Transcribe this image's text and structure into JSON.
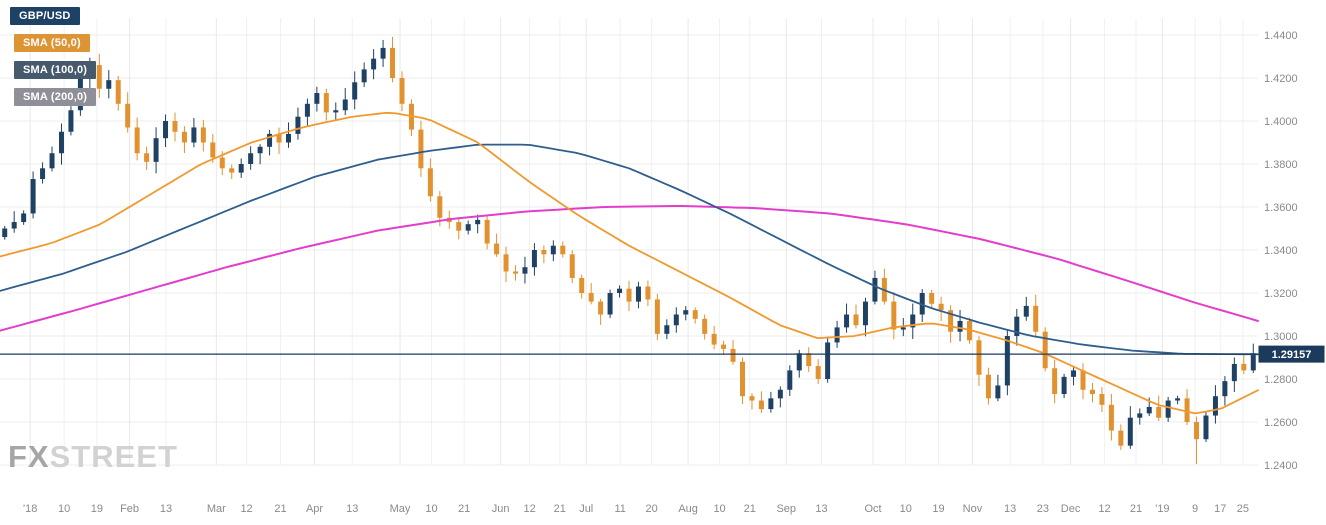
{
  "instrument": {
    "pair": "GBP/USD"
  },
  "legend": [
    {
      "label": "GBP/USD",
      "color": "#1d4266"
    },
    {
      "label": "SMA (50,0)",
      "color": "#dd9434"
    },
    {
      "label": "SMA (100,0)",
      "color": "#47596c"
    },
    {
      "label": "SMA (200,0)",
      "color": "#8f8f99"
    }
  ],
  "watermark": {
    "fx": "FX",
    "street": "STREET"
  },
  "price_axis": {
    "labels": [
      "1.4400",
      "1.4200",
      "1.4000",
      "1.3800",
      "1.3600",
      "1.3400",
      "1.3200",
      "1.3000",
      "1.2800",
      "1.2600",
      "1.2400"
    ],
    "current_price_label": "1.29157"
  },
  "chart_data": {
    "type": "candlestick",
    "title": "GBP/USD daily chart with SMA(50), SMA(100), SMA(200) overlays",
    "ylim": [
      1.24,
      1.44
    ],
    "y_ticks": [
      1.44,
      1.42,
      1.4,
      1.38,
      1.36,
      1.34,
      1.32,
      1.3,
      1.28,
      1.26,
      1.24
    ],
    "current_price": 1.29157,
    "x_ticks": [
      {
        "f": 0.024,
        "label": "'18",
        "month": true
      },
      {
        "f": 0.051,
        "label": "10",
        "month": false
      },
      {
        "f": 0.077,
        "label": "19",
        "month": false
      },
      {
        "f": 0.103,
        "label": "Feb",
        "month": true
      },
      {
        "f": 0.132,
        "label": "13",
        "month": false
      },
      {
        "f": 0.172,
        "label": "Mar",
        "month": true
      },
      {
        "f": 0.196,
        "label": "12",
        "month": false
      },
      {
        "f": 0.223,
        "label": "21",
        "month": false
      },
      {
        "f": 0.25,
        "label": "Apr",
        "month": true
      },
      {
        "f": 0.28,
        "label": "13",
        "month": false
      },
      {
        "f": 0.318,
        "label": "May",
        "month": true
      },
      {
        "f": 0.343,
        "label": "10",
        "month": false
      },
      {
        "f": 0.369,
        "label": "21",
        "month": false
      },
      {
        "f": 0.398,
        "label": "Jun",
        "month": true
      },
      {
        "f": 0.421,
        "label": "12",
        "month": false
      },
      {
        "f": 0.445,
        "label": "21",
        "month": false
      },
      {
        "f": 0.466,
        "label": "Jul",
        "month": true
      },
      {
        "f": 0.493,
        "label": "11",
        "month": false
      },
      {
        "f": 0.518,
        "label": "20",
        "month": false
      },
      {
        "f": 0.547,
        "label": "Aug",
        "month": true
      },
      {
        "f": 0.572,
        "label": "10",
        "month": false
      },
      {
        "f": 0.596,
        "label": "21",
        "month": false
      },
      {
        "f": 0.625,
        "label": "Sep",
        "month": true
      },
      {
        "f": 0.653,
        "label": "13",
        "month": false
      },
      {
        "f": 0.694,
        "label": "Oct",
        "month": true
      },
      {
        "f": 0.72,
        "label": "10",
        "month": false
      },
      {
        "f": 0.746,
        "label": "19",
        "month": false
      },
      {
        "f": 0.773,
        "label": "Nov",
        "month": true
      },
      {
        "f": 0.803,
        "label": "13",
        "month": false
      },
      {
        "f": 0.829,
        "label": "23",
        "month": false
      },
      {
        "f": 0.851,
        "label": "Dec",
        "month": true
      },
      {
        "f": 0.878,
        "label": "12",
        "month": false
      },
      {
        "f": 0.903,
        "label": "21",
        "month": false
      },
      {
        "f": 0.924,
        "label": "'19",
        "month": true
      },
      {
        "f": 0.95,
        "label": "9",
        "month": false
      },
      {
        "f": 0.97,
        "label": "17",
        "month": false
      },
      {
        "f": 0.988,
        "label": "25",
        "month": false
      }
    ],
    "candles": {
      "first_open": 1.346,
      "closes": [
        1.35,
        1.353,
        1.357,
        1.373,
        1.378,
        1.385,
        1.395,
        1.405,
        1.42,
        1.426,
        1.415,
        1.419,
        1.408,
        1.397,
        1.385,
        1.381,
        1.392,
        1.4,
        1.395,
        1.39,
        1.397,
        1.39,
        1.383,
        1.378,
        1.376,
        1.38,
        1.385,
        1.388,
        1.394,
        1.39,
        1.394,
        1.402,
        1.408,
        1.413,
        1.404,
        1.405,
        1.41,
        1.418,
        1.424,
        1.429,
        1.434,
        1.42,
        1.408,
        1.396,
        1.378,
        1.365,
        1.355,
        1.353,
        1.349,
        1.352,
        1.354,
        1.343,
        1.338,
        1.33,
        1.329,
        1.332,
        1.34,
        1.338,
        1.342,
        1.338,
        1.327,
        1.32,
        1.316,
        1.31,
        1.32,
        1.322,
        1.316,
        1.323,
        1.317,
        1.301,
        1.305,
        1.31,
        1.312,
        1.308,
        1.301,
        1.296,
        1.294,
        1.288,
        1.272,
        1.27,
        1.266,
        1.271,
        1.275,
        1.284,
        1.292,
        1.286,
        1.28,
        1.297,
        1.304,
        1.31,
        1.305,
        1.316,
        1.327,
        1.316,
        1.303,
        1.304,
        1.31,
        1.32,
        1.315,
        1.312,
        1.302,
        1.307,
        1.298,
        1.282,
        1.271,
        1.277,
        1.3,
        1.309,
        1.314,
        1.302,
        1.285,
        1.273,
        1.281,
        1.284,
        1.275,
        1.273,
        1.268,
        1.256,
        1.249,
        1.262,
        1.264,
        1.267,
        1.262,
        1.27,
        1.271,
        1.26,
        1.252,
        1.263,
        1.272,
        1.279,
        1.287,
        1.284,
        1.292
      ],
      "wick_overrides": {
        "40": {
          "high": 1.4377
        },
        "126": {
          "low": 1.2405
        }
      }
    },
    "sma_series": [
      {
        "name": "SMA (50,0)",
        "color": "#f0992e",
        "width": 1.8,
        "points": [
          [
            0,
            1.337
          ],
          [
            0.04,
            1.343
          ],
          [
            0.08,
            1.352
          ],
          [
            0.12,
            1.366
          ],
          [
            0.16,
            1.38
          ],
          [
            0.2,
            1.39
          ],
          [
            0.24,
            1.397
          ],
          [
            0.28,
            1.402
          ],
          [
            0.31,
            1.404
          ],
          [
            0.34,
            1.401
          ],
          [
            0.38,
            1.39
          ],
          [
            0.42,
            1.372
          ],
          [
            0.46,
            1.356
          ],
          [
            0.5,
            1.342
          ],
          [
            0.54,
            1.33
          ],
          [
            0.58,
            1.318
          ],
          [
            0.62,
            1.305
          ],
          [
            0.65,
            1.299
          ],
          [
            0.68,
            1.3
          ],
          [
            0.71,
            1.304
          ],
          [
            0.74,
            1.306
          ],
          [
            0.77,
            1.303
          ],
          [
            0.8,
            1.298
          ],
          [
            0.83,
            1.292
          ],
          [
            0.86,
            1.284
          ],
          [
            0.89,
            1.276
          ],
          [
            0.92,
            1.268
          ],
          [
            0.95,
            1.264
          ],
          [
            0.97,
            1.266
          ],
          [
            1,
            1.2748
          ]
        ]
      },
      {
        "name": "SMA (100,0)",
        "color": "#2e5e8e",
        "width": 1.8,
        "points": [
          [
            0,
            1.321
          ],
          [
            0.05,
            1.329
          ],
          [
            0.1,
            1.339
          ],
          [
            0.15,
            1.351
          ],
          [
            0.2,
            1.363
          ],
          [
            0.25,
            1.374
          ],
          [
            0.3,
            1.382
          ],
          [
            0.34,
            1.386
          ],
          [
            0.38,
            1.389
          ],
          [
            0.42,
            1.389
          ],
          [
            0.46,
            1.385
          ],
          [
            0.5,
            1.378
          ],
          [
            0.54,
            1.368
          ],
          [
            0.58,
            1.357
          ],
          [
            0.62,
            1.345
          ],
          [
            0.66,
            1.333
          ],
          [
            0.7,
            1.322
          ],
          [
            0.74,
            1.313
          ],
          [
            0.78,
            1.306
          ],
          [
            0.82,
            1.3
          ],
          [
            0.86,
            1.296
          ],
          [
            0.9,
            1.2932
          ],
          [
            0.94,
            1.2917
          ],
          [
            1,
            1.2915
          ]
        ]
      },
      {
        "name": "SMA (200,0)",
        "color": "#e23ecb",
        "width": 2,
        "points": [
          [
            0,
            1.3025
          ],
          [
            0.06,
            1.312
          ],
          [
            0.12,
            1.322
          ],
          [
            0.18,
            1.332
          ],
          [
            0.24,
            1.341
          ],
          [
            0.3,
            1.349
          ],
          [
            0.36,
            1.3545
          ],
          [
            0.42,
            1.358
          ],
          [
            0.48,
            1.36
          ],
          [
            0.54,
            1.3605
          ],
          [
            0.6,
            1.3595
          ],
          [
            0.66,
            1.357
          ],
          [
            0.72,
            1.352
          ],
          [
            0.78,
            1.345
          ],
          [
            0.84,
            1.336
          ],
          [
            0.9,
            1.325
          ],
          [
            0.95,
            1.3155
          ],
          [
            1,
            1.307
          ]
        ]
      }
    ],
    "colors": {
      "up": "#1e4164",
      "down": "#e2912f",
      "price_line": "#1b3a5c",
      "badge_bg": "#1b3a5c",
      "badge_text": "#ffffff",
      "grid": "#ececec",
      "vgrid": "#f1f1f1",
      "axis_text": "#8a8a8a"
    }
  }
}
